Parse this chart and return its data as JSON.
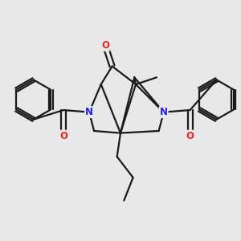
{
  "bg_color": "#e8e8e8",
  "bond_color": "#1a1a1a",
  "N_color": "#2222ee",
  "O_color": "#ee2222",
  "lw": 1.6,
  "lw_thick": 2.0,
  "fs": 8.5,
  "xlim": [
    -1.7,
    1.7
  ],
  "ylim": [
    -1.5,
    1.5
  ]
}
